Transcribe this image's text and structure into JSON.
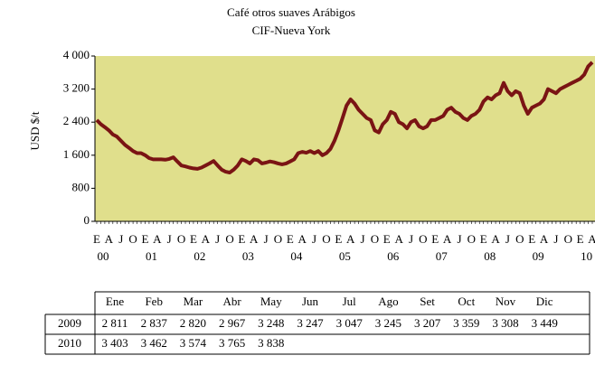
{
  "chart_data": {
    "type": "line",
    "title": "Café otros suaves Arábigos",
    "subtitle": "CIF-Nueva York",
    "y_label": "USD $/t",
    "x": [
      "2000-01",
      "2000-02",
      "2000-03",
      "2000-04",
      "2000-05",
      "2000-06",
      "2000-07",
      "2000-08",
      "2000-09",
      "2000-10",
      "2000-11",
      "2000-12",
      "2001-01",
      "2001-02",
      "2001-03",
      "2001-04",
      "2001-05",
      "2001-06",
      "2001-07",
      "2001-08",
      "2001-09",
      "2001-10",
      "2001-11",
      "2001-12",
      "2002-01",
      "2002-02",
      "2002-03",
      "2002-04",
      "2002-05",
      "2002-06",
      "2002-07",
      "2002-08",
      "2002-09",
      "2002-10",
      "2002-11",
      "2002-12",
      "2003-01",
      "2003-02",
      "2003-03",
      "2003-04",
      "2003-05",
      "2003-06",
      "2003-07",
      "2003-08",
      "2003-09",
      "2003-10",
      "2003-11",
      "2003-12",
      "2004-01",
      "2004-02",
      "2004-03",
      "2004-04",
      "2004-05",
      "2004-06",
      "2004-07",
      "2004-08",
      "2004-09",
      "2004-10",
      "2004-11",
      "2004-12",
      "2005-01",
      "2005-02",
      "2005-03",
      "2005-04",
      "2005-05",
      "2005-06",
      "2005-07",
      "2005-08",
      "2005-09",
      "2005-10",
      "2005-11",
      "2005-12",
      "2006-01",
      "2006-02",
      "2006-03",
      "2006-04",
      "2006-05",
      "2006-06",
      "2006-07",
      "2006-08",
      "2006-09",
      "2006-10",
      "2006-11",
      "2006-12",
      "2007-01",
      "2007-02",
      "2007-03",
      "2007-04",
      "2007-05",
      "2007-06",
      "2007-07",
      "2007-08",
      "2007-09",
      "2007-10",
      "2007-11",
      "2007-12",
      "2008-01",
      "2008-02",
      "2008-03",
      "2008-04",
      "2008-05",
      "2008-06",
      "2008-07",
      "2008-08",
      "2008-09",
      "2008-10",
      "2008-11",
      "2008-12",
      "2009-01",
      "2009-02",
      "2009-03",
      "2009-04",
      "2009-05",
      "2009-06",
      "2009-07",
      "2009-08",
      "2009-09",
      "2009-10",
      "2009-11",
      "2009-12",
      "2010-01",
      "2010-02",
      "2010-03",
      "2010-04"
    ],
    "series": [
      {
        "color": "#7a1414",
        "values": [
          2450,
          2350,
          2280,
          2200,
          2100,
          2050,
          1950,
          1850,
          1780,
          1700,
          1650,
          1650,
          1600,
          1530,
          1500,
          1500,
          1500,
          1490,
          1510,
          1550,
          1450,
          1350,
          1330,
          1300,
          1280,
          1270,
          1300,
          1350,
          1400,
          1460,
          1350,
          1250,
          1200,
          1180,
          1250,
          1350,
          1500,
          1460,
          1400,
          1500,
          1480,
          1400,
          1420,
          1450,
          1430,
          1400,
          1380,
          1400,
          1450,
          1500,
          1650,
          1680,
          1660,
          1700,
          1650,
          1700,
          1600,
          1650,
          1750,
          1950,
          2200,
          2500,
          2800,
          2950,
          2850,
          2700,
          2600,
          2500,
          2450,
          2200,
          2150,
          2350,
          2450,
          2650,
          2600,
          2400,
          2350,
          2250,
          2400,
          2450,
          2300,
          2250,
          2300,
          2450,
          2450,
          2500,
          2550,
          2700,
          2750,
          2650,
          2600,
          2500,
          2450,
          2550,
          2600,
          2700,
          2900,
          3000,
          2950,
          3050,
          3100,
          3350,
          3150,
          3050,
          3150,
          3100,
          2800,
          2600,
          2750,
          2800,
          2850,
          2950,
          3200,
          3150,
          3100,
          3200,
          3250,
          3300,
          3350,
          3400,
          3450,
          3550,
          3750,
          3850
        ]
      }
    ],
    "ylim": [
      0,
      4000
    ],
    "yticks": [
      0,
      800,
      {
        "value": 1600,
        "label": "1 600"
      },
      {
        "value": 2400,
        "label": "2 400"
      },
      {
        "value": 3200,
        "label": "3 200"
      },
      {
        "value": 4000,
        "label": "4 000"
      }
    ],
    "xticks": [
      {
        "value": "2000-01",
        "label": "E"
      },
      {
        "value": "2000-04",
        "label": "A"
      },
      {
        "value": "2000-07",
        "label": "J"
      },
      {
        "value": "2000-10",
        "label": "O"
      },
      {
        "value": "2001-01",
        "label": "E"
      },
      {
        "value": "2001-04",
        "label": "A"
      },
      {
        "value": "2001-07",
        "label": "J"
      },
      {
        "value": "2001-10",
        "label": "O"
      },
      {
        "value": "2002-01",
        "label": "E"
      },
      {
        "value": "2002-04",
        "label": "A"
      },
      {
        "value": "2002-07",
        "label": "J"
      },
      {
        "value": "2002-10",
        "label": "O"
      },
      {
        "value": "2003-01",
        "label": "E"
      },
      {
        "value": "2003-04",
        "label": "A"
      },
      {
        "value": "2003-07",
        "label": "J"
      },
      {
        "value": "2003-10",
        "label": "O"
      },
      {
        "value": "2004-01",
        "label": "E"
      },
      {
        "value": "2004-04",
        "label": "A"
      },
      {
        "value": "2004-07",
        "label": "J"
      },
      {
        "value": "2004-10",
        "label": "O"
      },
      {
        "value": "2005-01",
        "label": "E"
      },
      {
        "value": "2005-04",
        "label": "A"
      },
      {
        "value": "2005-07",
        "label": "J"
      },
      {
        "value": "2005-10",
        "label": "O"
      },
      {
        "value": "2006-01",
        "label": "E"
      },
      {
        "value": "2006-04",
        "label": "A"
      },
      {
        "value": "2006-07",
        "label": "J"
      },
      {
        "value": "2006-10",
        "label": "O"
      },
      {
        "value": "2007-01",
        "label": "E"
      },
      {
        "value": "2007-04",
        "label": "A"
      },
      {
        "value": "2007-07",
        "label": "J"
      },
      {
        "value": "2007-10",
        "label": "O"
      },
      {
        "value": "2008-01",
        "label": "E"
      },
      {
        "value": "2008-04",
        "label": "A"
      },
      {
        "value": "2008-07",
        "label": "J"
      },
      {
        "value": "2008-10",
        "label": "O"
      },
      {
        "value": "2009-01",
        "label": "E"
      },
      {
        "value": "2009-04",
        "label": "A"
      },
      {
        "value": "2009-07",
        "label": "J"
      },
      {
        "value": "2009-10",
        "label": "O"
      },
      {
        "value": "2010-01",
        "label": "E"
      },
      {
        "value": "2010-04",
        "label": "A"
      }
    ],
    "year_labels": [
      {
        "value": "2000-01",
        "label": "00"
      },
      {
        "value": "2001-01",
        "label": "01"
      },
      {
        "value": "2002-01",
        "label": "02"
      },
      {
        "value": "2003-01",
        "label": "03"
      },
      {
        "value": "2004-01",
        "label": "04"
      },
      {
        "value": "2005-01",
        "label": "05"
      },
      {
        "value": "2006-01",
        "label": "06"
      },
      {
        "value": "2007-01",
        "label": "07"
      },
      {
        "value": "2008-01",
        "label": "08"
      },
      {
        "value": "2009-01",
        "label": "09"
      },
      {
        "value": "2010-01",
        "label": "10"
      }
    ],
    "plot_background": "#e0df8c"
  },
  "table": {
    "columns": [
      "Ene",
      "Feb",
      "Mar",
      "Abr",
      "May",
      "Jun",
      "Jul",
      "Ago",
      "Set",
      "Oct",
      "Nov",
      "Dic"
    ],
    "rows": [
      {
        "label": "2009",
        "values": [
          "2 811",
          "2 837",
          "2 820",
          "2 967",
          "3 248",
          "3 247",
          "3 047",
          "3 245",
          "3 207",
          "3 359",
          "3 308",
          "3 449"
        ]
      },
      {
        "label": "2010",
        "values": [
          "3 403",
          "3 462",
          "3 574",
          "3 765",
          "3 838"
        ]
      }
    ]
  }
}
